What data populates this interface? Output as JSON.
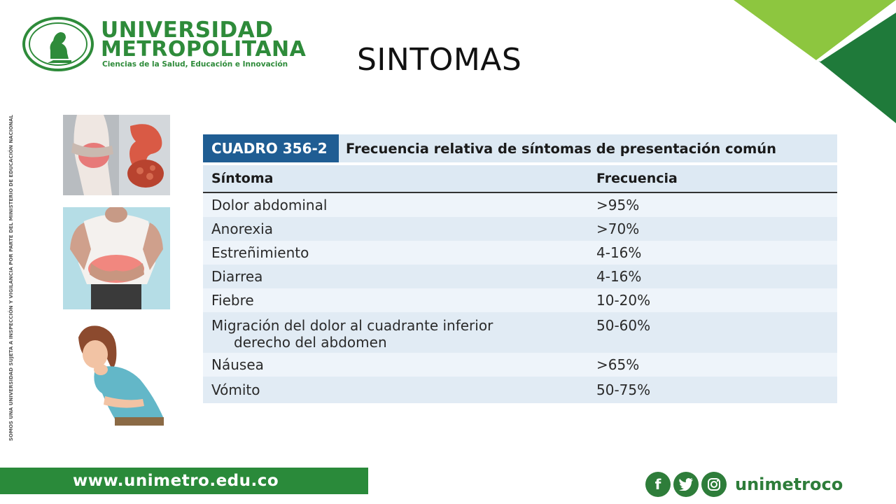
{
  "logo": {
    "name_line1": "UNIVERSIDAD",
    "name_line2": "METROPOLITANA",
    "tagline": "Ciencias de la Salud, Educación e Innovación"
  },
  "title": "SINTOMAS",
  "side_text": "SOMOS UNA UNIVERSIDAD SUJETA A INSPECCIÓN Y VIGILANCIA POR PARTE DEL MINISTERIO DE EDUCACIÓN NACIONAL",
  "images": [
    {
      "name": "abdominal-pain-intestines-photo"
    },
    {
      "name": "man-holding-abdomen-photo"
    },
    {
      "name": "nauseous-woman-illustration"
    }
  ],
  "table": {
    "code": "CUADRO 356-2",
    "caption": "Frecuencia relativa de síntomas de presentación común",
    "headers": [
      "Síntoma",
      "Frecuencia"
    ],
    "rows": [
      {
        "symptom": "Dolor abdominal",
        "frequency": ">95%"
      },
      {
        "symptom": "Anorexia",
        "frequency": ">70%"
      },
      {
        "symptom": "Estreñimiento",
        "frequency": "4-16%"
      },
      {
        "symptom": "Diarrea",
        "frequency": "4-16%"
      },
      {
        "symptom": "Fiebre",
        "frequency": "10-20%"
      },
      {
        "symptom": "Migración del dolor al cuadrante inferior",
        "symptom_cont": "derecho del abdomen",
        "frequency": "50-60%"
      },
      {
        "symptom": "Náusea",
        "frequency": ">65%"
      },
      {
        "symptom": "Vómito",
        "frequency": "50-75%"
      }
    ]
  },
  "footer": {
    "url": "www.unimetro.edu.co",
    "social_icons": [
      "facebook-icon",
      "twitter-icon",
      "instagram-icon"
    ],
    "social_handle": "unimetroco"
  },
  "colors": {
    "brand_green": "#2e8b3a",
    "table_blue": "#1f5d93",
    "table_row_light": "#eef4fa",
    "table_row_dark": "#e1ebf4"
  }
}
